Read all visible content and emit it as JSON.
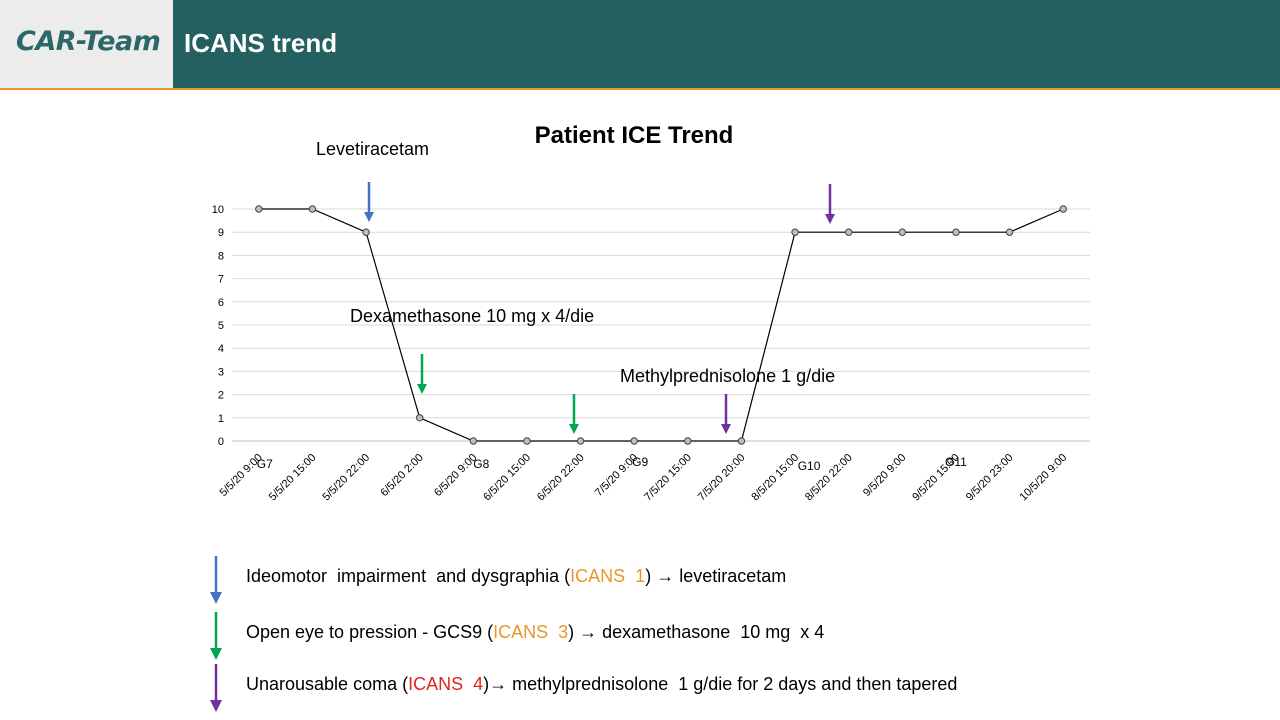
{
  "header": {
    "logo_text": "CAR-Team",
    "title": "ICANS trend"
  },
  "colors": {
    "header_bg": "#23605f",
    "accent_rule": "#e8952a",
    "levetiracetam_arrow": "#4472c4",
    "dexamethasone_arrow": "#00a650",
    "methylprednisolone_arrow": "#7030a0",
    "icans_low": "#e8952a",
    "icans_high": "#e0251b"
  },
  "chart_data": {
    "type": "line",
    "title": "Patient ICE Trend",
    "categories": [
      "5/5/20 9:00",
      "5/5/20 15:00",
      "5/5/20 22:00",
      "6/5/20 2:00",
      "6/5/20 9:00",
      "6/5/20 15:00",
      "6/5/20 22:00",
      "7/5/20 9:00",
      "7/5/20 15:00",
      "7/5/20 20:00",
      "8/5/20 15:00",
      "8/5/20 22:00",
      "9/5/20 9:00",
      "9/5/20 15:00",
      "9/5/20 23:00",
      "10/5/20 9:00"
    ],
    "values": [
      10,
      10,
      9,
      1,
      0,
      0,
      0,
      0,
      0,
      0,
      9,
      9,
      9,
      9,
      9,
      10
    ],
    "ylim": [
      0,
      10
    ],
    "yticks": [
      0,
      1,
      2,
      3,
      4,
      5,
      6,
      7,
      8,
      9,
      10
    ],
    "grid": true,
    "day_labels": [
      "G7",
      "G8",
      "G9",
      "G10",
      "G11"
    ],
    "annotations": [
      "Levetiracetam",
      "Dexamethasone  10 mg  x 4/die",
      "Methylprednisolone  1 g/die"
    ]
  },
  "legend": [
    {
      "pre": "Ideomotor  impairment  and dysgraphia (",
      "icans": "ICANS  1",
      "post": ") → levetiracetam"
    },
    {
      "pre": "Open eye to pression - GCS9 (",
      "icans": "ICANS  3",
      "post": ") → dexamethasone  10 mg  x 4"
    },
    {
      "pre": "Unarousable coma (",
      "icans": "ICANS  4",
      "post": ")→ methylprednisolone  1 g/die for 2 days and then tapered"
    }
  ]
}
